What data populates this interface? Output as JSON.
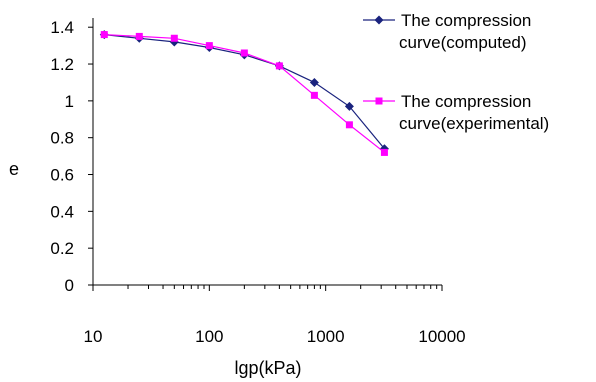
{
  "chart_data": {
    "type": "line",
    "title": "",
    "xlabel": "lgp(kPa)",
    "ylabel": "e",
    "xscale": "log",
    "xlim": [
      10,
      10000
    ],
    "ylim": [
      0,
      1.45
    ],
    "x_ticks": [
      10,
      100,
      1000,
      10000
    ],
    "x_tick_labels": [
      "10",
      "100",
      "1000",
      "10000"
    ],
    "y_ticks": [
      0,
      0.2,
      0.4,
      0.6,
      0.8,
      1.0,
      1.2,
      1.4
    ],
    "y_tick_labels": [
      "0",
      "0.2",
      "0.4",
      "0.6",
      "0.8",
      "1",
      "1.2",
      "1.4"
    ],
    "grid": false,
    "legend_position": "right",
    "series": [
      {
        "name": "The compression curve(computed)",
        "legend_lines": [
          "The compression",
          "curve(computed)"
        ],
        "color": "#1a237e",
        "marker": "diamond",
        "x": [
          12.5,
          25,
          50,
          100,
          200,
          400,
          800,
          1600,
          3200
        ],
        "y": [
          1.36,
          1.34,
          1.32,
          1.29,
          1.25,
          1.19,
          1.1,
          0.97,
          0.74
        ]
      },
      {
        "name": "The compression curve(experimental)",
        "legend_lines": [
          "The compression",
          "curve(experimental)"
        ],
        "color": "#ff00ff",
        "marker": "square",
        "x": [
          12.5,
          25,
          50,
          100,
          200,
          400,
          800,
          1600,
          3200
        ],
        "y": [
          1.36,
          1.35,
          1.34,
          1.3,
          1.26,
          1.19,
          1.03,
          0.87,
          0.72
        ]
      }
    ]
  }
}
